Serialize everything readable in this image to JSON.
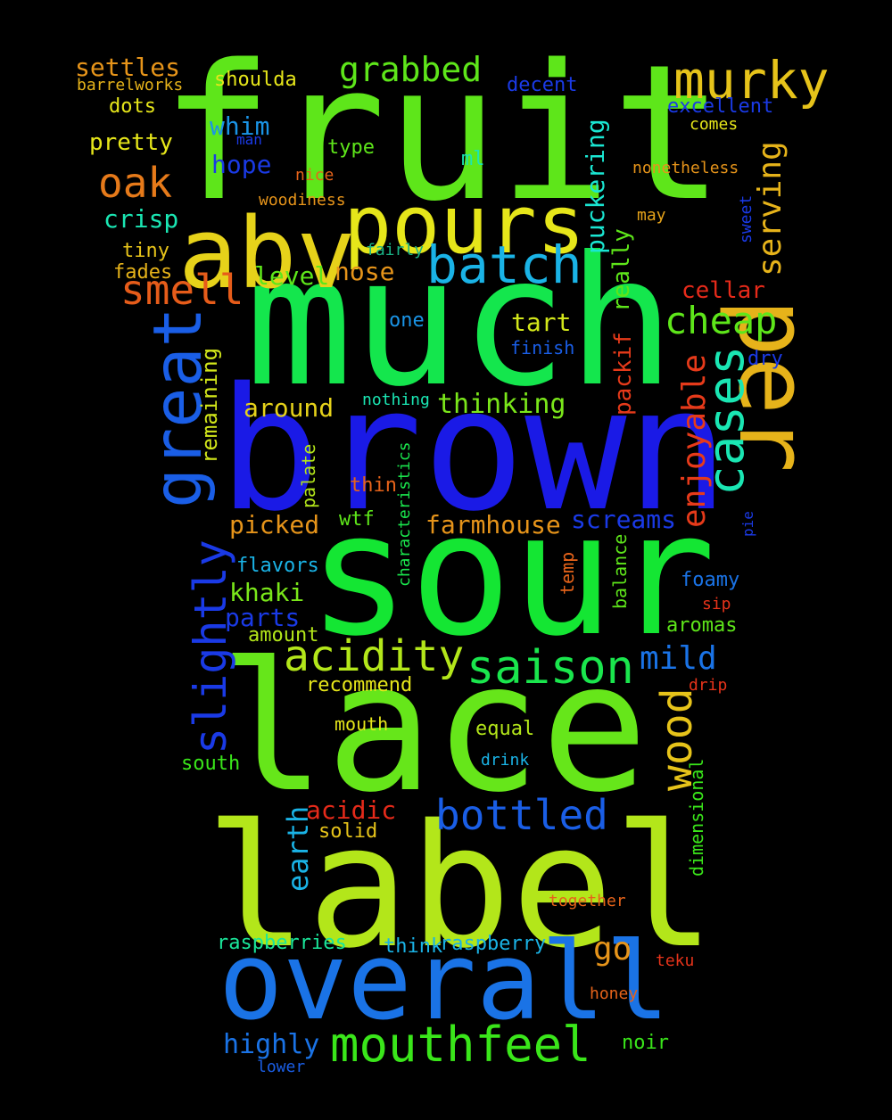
{
  "words": [
    {
      "text": "fruit",
      "color": "#5ee61a"
    },
    {
      "text": "much",
      "color": "#14e64d"
    },
    {
      "text": "brown",
      "color": "#1a1ae6"
    },
    {
      "text": "sour",
      "color": "#14e633"
    },
    {
      "text": "lace",
      "color": "#66e61a"
    },
    {
      "text": "label",
      "color": "#b3e61a"
    },
    {
      "text": "overall",
      "color": "#1a73e6"
    },
    {
      "text": "abv",
      "color": "#e6d21a"
    },
    {
      "text": "pours",
      "color": "#e6e61a"
    },
    {
      "text": "per",
      "color": "#e6b31a"
    },
    {
      "text": "murky",
      "color": "#e6c31a"
    },
    {
      "text": "batch",
      "color": "#1ab3e6"
    },
    {
      "text": "grabbed",
      "color": "#5ee61a"
    },
    {
      "text": "oak",
      "color": "#e67a1a"
    },
    {
      "text": "smell",
      "color": "#e65c1a"
    },
    {
      "text": "great",
      "color": "#1a5ee6"
    },
    {
      "text": "serving",
      "color": "#e6b31a"
    },
    {
      "text": "cheap",
      "color": "#5ee61a"
    },
    {
      "text": "cases",
      "color": "#1ae6b3"
    },
    {
      "text": "enjoyable",
      "color": "#e63a1a"
    },
    {
      "text": "slightly",
      "color": "#1a3ae6"
    },
    {
      "text": "acidity",
      "color": "#b3e61a"
    },
    {
      "text": "saison",
      "color": "#1ae64d"
    },
    {
      "text": "mild",
      "color": "#1a73e6"
    },
    {
      "text": "wood",
      "color": "#e6c31a"
    },
    {
      "text": "mouthfeel",
      "color": "#3ae61a"
    },
    {
      "text": "bottled",
      "color": "#1a5ee6"
    },
    {
      "text": "go",
      "color": "#e6941a"
    },
    {
      "text": "earth",
      "color": "#1ab3e6"
    },
    {
      "text": "acidic",
      "color": "#e62a1a"
    },
    {
      "text": "highly",
      "color": "#1a73e6"
    },
    {
      "text": "farmhouse",
      "color": "#e6941a"
    },
    {
      "text": "screams",
      "color": "#1a3ae6"
    },
    {
      "text": "picked",
      "color": "#e6941a"
    },
    {
      "text": "khaki",
      "color": "#7ae61a"
    },
    {
      "text": "parts",
      "color": "#1a3ae6"
    },
    {
      "text": "thinking",
      "color": "#7ae61a"
    },
    {
      "text": "around",
      "color": "#e6d21a"
    },
    {
      "text": "remaining",
      "color": "#d2e61a"
    },
    {
      "text": "tart",
      "color": "#d2e61a"
    },
    {
      "text": "packif",
      "color": "#e63a1a"
    },
    {
      "text": "really",
      "color": "#5ee61a"
    },
    {
      "text": "puckering",
      "color": "#1ae6d2"
    },
    {
      "text": "cellar",
      "color": "#e62a1a"
    },
    {
      "text": "nose",
      "color": "#e6941a"
    },
    {
      "text": "level",
      "color": "#5ee61a"
    },
    {
      "text": "settles",
      "color": "#e6941a"
    },
    {
      "text": "barrelworks",
      "color": "#e6b31a"
    },
    {
      "text": "shoulda",
      "color": "#e6e61a"
    },
    {
      "text": "dots",
      "color": "#e6e61a"
    },
    {
      "text": "pretty",
      "color": "#e6e61a"
    },
    {
      "text": "whim",
      "color": "#1a94e6"
    },
    {
      "text": "man",
      "color": "#1a3ae6"
    },
    {
      "text": "hope",
      "color": "#1a3ae6"
    },
    {
      "text": "nice",
      "color": "#e6631a"
    },
    {
      "text": "type",
      "color": "#5ee61a"
    },
    {
      "text": "crisp",
      "color": "#1ae6b3"
    },
    {
      "text": "woodiness",
      "color": "#e6941a"
    },
    {
      "text": "tiny",
      "color": "#e6c31a"
    },
    {
      "text": "fades",
      "color": "#e6b31a"
    },
    {
      "text": "fairly",
      "color": "#1ab386"
    },
    {
      "text": "decent",
      "color": "#1a3ae6"
    },
    {
      "text": "excellent",
      "color": "#1a3ae6"
    },
    {
      "text": "comes",
      "color": "#e6e61a"
    },
    {
      "text": "nonetheless",
      "color": "#e6941a"
    },
    {
      "text": "may",
      "color": "#e6a31a"
    },
    {
      "text": "sweet",
      "color": "#1a3ae6"
    },
    {
      "text": "ml",
      "color": "#1ae6b3"
    },
    {
      "text": "one",
      "color": "#1a94e6"
    },
    {
      "text": "finish",
      "color": "#1a5ee6"
    },
    {
      "text": "dry",
      "color": "#1a3ae6"
    },
    {
      "text": "nothing",
      "color": "#1ae6b3"
    },
    {
      "text": "palate",
      "color": "#b3e61a"
    },
    {
      "text": "thin",
      "color": "#e6631a"
    },
    {
      "text": "characteristics",
      "color": "#1ae64d"
    },
    {
      "text": "wtf",
      "color": "#5ee61a"
    },
    {
      "text": "flavors",
      "color": "#1ab3e6"
    },
    {
      "text": "amount",
      "color": "#b3e61a"
    },
    {
      "text": "recommend",
      "color": "#e6e61a"
    },
    {
      "text": "mouth",
      "color": "#e6e61a"
    },
    {
      "text": "equal",
      "color": "#b3e61a"
    },
    {
      "text": "drink",
      "color": "#1ab3e6"
    },
    {
      "text": "south",
      "color": "#3ae61a"
    },
    {
      "text": "solid",
      "color": "#e6c31a"
    },
    {
      "text": "temp",
      "color": "#e6631a"
    },
    {
      "text": "balance",
      "color": "#5ee61a"
    },
    {
      "text": "foamy",
      "color": "#1a73e6"
    },
    {
      "text": "sip",
      "color": "#e6331a"
    },
    {
      "text": "aromas",
      "color": "#5ee61a"
    },
    {
      "text": "drip",
      "color": "#e6331a"
    },
    {
      "text": "pie",
      "color": "#1a3ae6"
    },
    {
      "text": "dimensional",
      "color": "#3ae61a"
    },
    {
      "text": "together",
      "color": "#e6631a"
    },
    {
      "text": "teku",
      "color": "#e6331a"
    },
    {
      "text": "honey",
      "color": "#e6631a"
    },
    {
      "text": "raspberries",
      "color": "#1ae69a"
    },
    {
      "text": "think",
      "color": "#1ab3e6"
    },
    {
      "text": "raspberry",
      "color": "#1ab3e6"
    },
    {
      "text": "noir",
      "color": "#3ae61a"
    },
    {
      "text": "lower",
      "color": "#1a5ee6"
    }
  ]
}
